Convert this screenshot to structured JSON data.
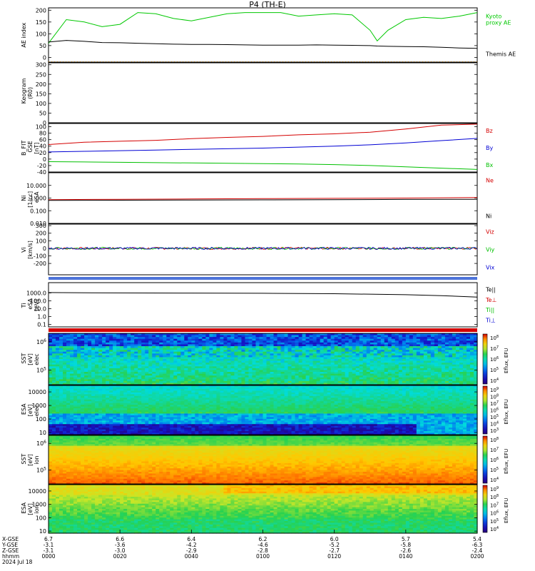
{
  "title": "P4 (TH-E)",
  "footer": {
    "row_labels": [
      "X-GSE",
      "Y-GSE",
      "Z-GSE",
      "hhmm",
      "2024 Jul 18"
    ],
    "x_ticks": [
      {
        "t": 0,
        "vals": [
          "6.7",
          "-3.1",
          "-3.1",
          "0000"
        ]
      },
      {
        "t": 20,
        "vals": [
          "6.6",
          "-3.6",
          "-3.0",
          "0020"
        ]
      },
      {
        "t": 40,
        "vals": [
          "6.4",
          "-4.2",
          "-2.9",
          "0040"
        ]
      },
      {
        "t": 60,
        "vals": [
          "6.2",
          "-4.6",
          "-2.8",
          "0100"
        ]
      },
      {
        "t": 80,
        "vals": [
          "6.0",
          "-5.2",
          "-2.7",
          "0120"
        ]
      },
      {
        "t": 100,
        "vals": [
          "5.7",
          "-5.8",
          "-2.6",
          "0140"
        ]
      },
      {
        "t": 120,
        "vals": [
          "5.4",
          "-6.3",
          "-2.4",
          "0200"
        ]
      }
    ]
  },
  "chart_data": [
    {
      "type": "line",
      "panel": "ae",
      "ylabel": [
        "AE index"
      ],
      "ylim": [
        -20,
        210
      ],
      "yticks": [
        "0",
        "50",
        "100",
        "150",
        "200"
      ],
      "ytick_vals": [
        0,
        50,
        100,
        150,
        200
      ],
      "x_minutes": [
        0,
        5,
        10,
        15,
        20,
        25,
        30,
        35,
        40,
        45,
        50,
        55,
        60,
        65,
        70,
        75,
        80,
        85,
        90,
        92,
        95,
        100,
        105,
        110,
        115,
        120
      ],
      "series": [
        {
          "name": "Kyoto proxy AE",
          "color": "#00c800",
          "legend": [
            "Kyoto",
            "proxy AE"
          ],
          "values": [
            60,
            160,
            150,
            130,
            140,
            190,
            185,
            165,
            155,
            170,
            185,
            190,
            190,
            190,
            175,
            180,
            185,
            180,
            115,
            70,
            115,
            160,
            170,
            165,
            175,
            190
          ]
        },
        {
          "name": "Themis AE",
          "color": "#000000",
          "legend": [
            "Themis AE"
          ],
          "values": [
            65,
            72,
            68,
            63,
            62,
            60,
            58,
            56,
            55,
            55,
            54,
            53,
            52,
            52,
            52,
            53,
            52,
            51,
            50,
            48,
            47,
            46,
            45,
            43,
            40,
            38
          ]
        }
      ]
    },
    {
      "type": "line",
      "panel": "keogram",
      "ylabel": [
        "Keogram",
        "(R0)"
      ],
      "ylim": [
        0,
        310
      ],
      "yticks": [
        "0",
        "50",
        "100",
        "150",
        "200",
        "250",
        "300"
      ],
      "ytick_vals": [
        0,
        50,
        100,
        150,
        200,
        250,
        300
      ],
      "series": []
    },
    {
      "type": "line",
      "panel": "bfield",
      "ylabel": [
        "B_FIT",
        "GSE",
        "[nT]"
      ],
      "ylim": [
        -40,
        110
      ],
      "yticks": [
        "-40",
        "-20",
        "0",
        "20",
        "40",
        "60",
        "80",
        "100"
      ],
      "ytick_vals": [
        -40,
        -20,
        0,
        20,
        40,
        60,
        80,
        100
      ],
      "x_minutes": [
        0,
        10,
        20,
        30,
        40,
        50,
        60,
        70,
        80,
        90,
        100,
        110,
        120
      ],
      "series": [
        {
          "name": "Bz",
          "color": "#d40000",
          "values": [
            45,
            52,
            55,
            58,
            63,
            67,
            70,
            75,
            78,
            83,
            93,
            105,
            108
          ]
        },
        {
          "name": "By",
          "color": "#0000d4",
          "values": [
            22,
            24,
            26,
            28,
            30,
            32,
            34,
            37,
            40,
            44,
            50,
            57,
            64
          ]
        },
        {
          "name": "Bx",
          "color": "#00c000",
          "values": [
            -8,
            -9,
            -10,
            -11,
            -12,
            -13,
            -14,
            -15,
            -17,
            -20,
            -24,
            -28,
            -32
          ]
        }
      ]
    },
    {
      "type": "line",
      "panel": "density",
      "ylabel": [
        "Ni",
        "[1/cc]",
        "eSA"
      ],
      "yscale": "log",
      "ylim": [
        0.01,
        100
      ],
      "yticks": [
        "0.010",
        "0.100",
        "1.000",
        "10.000"
      ],
      "ytick_vals": [
        0.01,
        0.1,
        1,
        10
      ],
      "x_minutes": [
        0,
        20,
        40,
        60,
        80,
        100,
        120
      ],
      "series": [
        {
          "name": "Ne",
          "color": "#d40000",
          "values": [
            0.75,
            0.8,
            0.85,
            0.9,
            0.95,
            1.0,
            1.1
          ]
        },
        {
          "name": "Ni",
          "color": "#000000",
          "values": [
            0.65,
            0.68,
            0.7,
            0.72,
            0.75,
            0.78,
            0.8
          ]
        }
      ]
    },
    {
      "type": "line",
      "panel": "velocity",
      "ylabel": [
        "Vi",
        "[km/s]"
      ],
      "ylim": [
        -350,
        320
      ],
      "yticks": [
        "-200",
        "-100",
        "0",
        "100",
        "200",
        "300"
      ],
      "ytick_vals": [
        -200,
        -100,
        0,
        100,
        200,
        300
      ],
      "series": [
        {
          "name": "Viz",
          "color": "#d40000",
          "values": [
            0
          ]
        },
        {
          "name": "Viy",
          "color": "#00c000",
          "values": [
            0
          ]
        },
        {
          "name": "Vix",
          "color": "#0000d4",
          "values": [
            0
          ]
        }
      ]
    },
    {
      "type": "line",
      "panel": "temperature",
      "ylabel": [
        "Ti",
        "eSA",
        "[eV]"
      ],
      "yscale": "log",
      "ylim": [
        0.05,
        20000
      ],
      "yticks": [
        "0.1",
        "1.0",
        "10.0",
        "100.0",
        "1000.0"
      ],
      "ytick_vals": [
        0.1,
        1,
        10,
        100,
        1000
      ],
      "x_minutes": [
        0,
        20,
        40,
        60,
        80,
        100,
        110,
        120
      ],
      "series": [
        {
          "name": "Te||",
          "color": "#000000",
          "values": [
            1100,
            1000,
            950,
            900,
            800,
            600,
            450,
            300
          ]
        },
        {
          "name": "Te⊥",
          "color": "#d40000",
          "values": []
        },
        {
          "name": "Ti||",
          "color": "#00c000",
          "values": []
        },
        {
          "name": "Ti⊥",
          "color": "#0000d4",
          "values": []
        }
      ]
    },
    {
      "type": "heatmap",
      "panel": "sst_elec",
      "ylabel": [
        "SST",
        "[eV]",
        "elec"
      ],
      "yscale": "log",
      "ylim": [
        30000,
        2000000
      ],
      "yticks": [
        "10^5",
        "10^6"
      ],
      "ytick_vals": [
        100000,
        1000000
      ],
      "colorbar": {
        "label": "Eflux, EFU",
        "ticks": [
          "10^8",
          "10^7",
          "10^6",
          "10^5",
          "10^4"
        ]
      }
    },
    {
      "type": "heatmap",
      "panel": "esa_elec",
      "ylabel": [
        "ESA",
        "[eV]",
        "elec"
      ],
      "yscale": "log",
      "ylim": [
        7,
        30000
      ],
      "yticks": [
        "10",
        "100",
        "1000",
        "10000"
      ],
      "ytick_vals": [
        10,
        100,
        1000,
        10000
      ],
      "colorbar": {
        "label": "Eflux, EFU",
        "ticks": [
          "10^9",
          "10^8",
          "10^7",
          "10^6",
          "10^5",
          "10^4",
          "10^3"
        ]
      }
    },
    {
      "type": "heatmap",
      "panel": "sst_ion",
      "ylabel": [
        "SST",
        "[eV]",
        "ion"
      ],
      "yscale": "log",
      "ylim": [
        30000,
        2000000
      ],
      "yticks": [
        "10^5",
        "10^6"
      ],
      "ytick_vals": [
        100000,
        1000000
      ],
      "colorbar": {
        "label": "Eflux, EFU",
        "ticks": [
          "10^8",
          "10^7",
          "10^6",
          "10^5",
          "10^4"
        ]
      }
    },
    {
      "type": "heatmap",
      "panel": "esa_ion",
      "ylabel": [
        "ESA",
        "[eV]",
        "ion"
      ],
      "yscale": "log",
      "ylim": [
        7,
        30000
      ],
      "yticks": [
        "10",
        "100",
        "1000",
        "10000"
      ],
      "ytick_vals": [
        10,
        100,
        1000,
        10000
      ],
      "colorbar": {
        "label": "Eflux, EFU",
        "ticks": [
          "10^9",
          "10^8",
          "10^7",
          "10^6",
          "10^5",
          "10^4"
        ]
      }
    }
  ]
}
